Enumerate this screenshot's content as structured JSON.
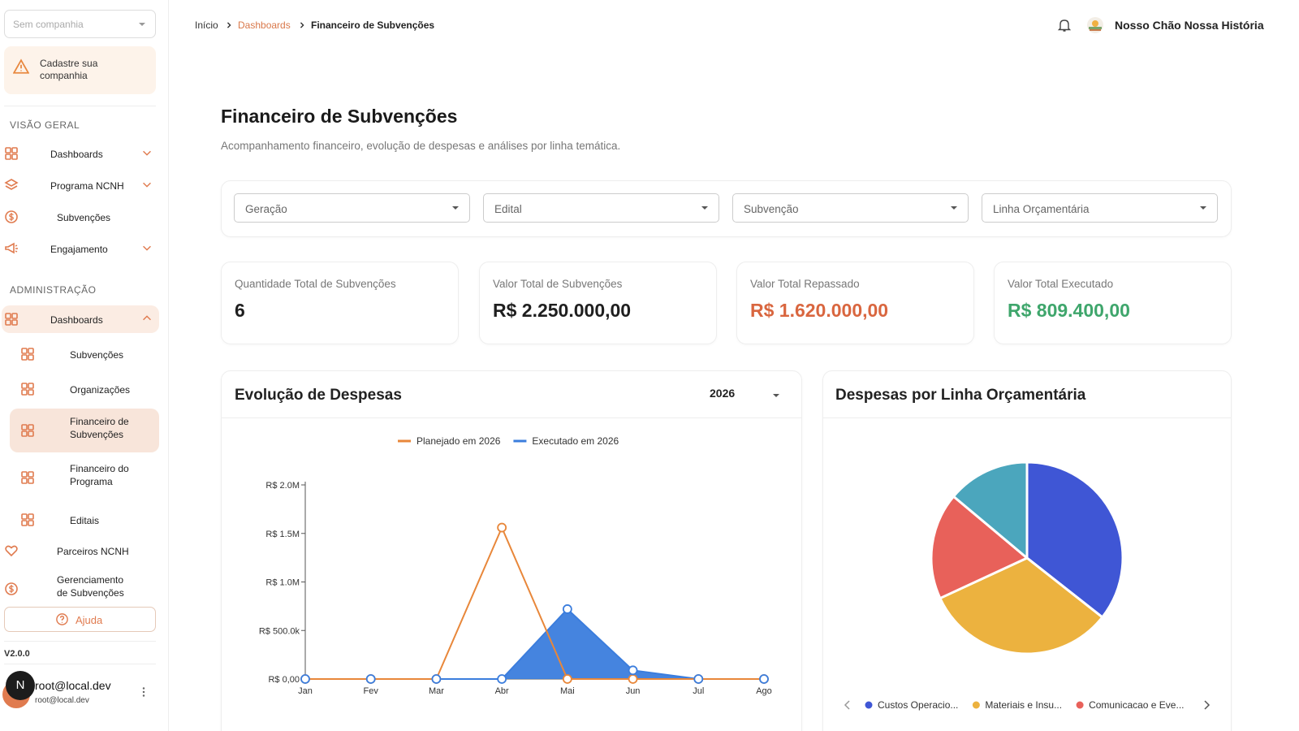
{
  "sidebar": {
    "company_select": "Sem companhia",
    "company_alert": "Cadastre sua companhia",
    "sections": [
      {
        "title": "VISÃO GERAL",
        "items": [
          "Dashboards",
          "Programa NCNH",
          "Subvenções",
          "Engajamento"
        ]
      },
      {
        "title": "ADMINISTRAÇÃO",
        "items": [
          "Dashboards",
          "Subvenções",
          "Organizações",
          "Financeiro de Subvenções",
          "Financeiro do Programa",
          "Editais",
          "Parceiros NCNH",
          "Gerenciamento de Subvenções"
        ]
      }
    ],
    "help": "Ajuda",
    "version": "V2.0.0",
    "user": {
      "avatar": "N",
      "name": "root@local.dev",
      "email": "root@local.dev"
    }
  },
  "breadcrumb": [
    "Início",
    "Dashboards",
    "Financeiro de Subvenções"
  ],
  "header": {
    "organization": "Nosso Chão Nossa História"
  },
  "page": {
    "title": "Financeiro de Subvenções",
    "subtitle": "Acompanhamento financeiro, evolução de despesas e análises por linha temática."
  },
  "filters": [
    "Geração",
    "Edital",
    "Subvenção",
    "Linha Orçamentária"
  ],
  "kpis": [
    {
      "label": "Quantidade Total de Subvenções",
      "value": "6",
      "color": "#1f1f1f"
    },
    {
      "label": "Valor Total de Subvenções",
      "value": "R$ 2.250.000,00",
      "color": "#1f1f1f"
    },
    {
      "label": "Valor Total Repassado",
      "value": "R$ 1.620.000,00",
      "color": "#d9663f"
    },
    {
      "label": "Valor Total Executado",
      "value": "R$ 809.400,00",
      "color": "#3fa66c"
    }
  ],
  "chart_data": [
    {
      "type": "line",
      "title": "Evolução de Despesas",
      "period": "2026",
      "categories": [
        "Jan",
        "Fev",
        "Mar",
        "Abr",
        "Mai",
        "Jun",
        "Jul",
        "Ago"
      ],
      "series": [
        {
          "name": "Planejado em 2026",
          "color": "#e8873a",
          "area": false,
          "values": [
            0,
            0,
            0,
            1560000,
            0,
            0,
            0,
            0
          ]
        },
        {
          "name": "Executado em 2026",
          "color": "#3b7ddd",
          "area": true,
          "values": [
            0,
            0,
            0,
            0,
            720000,
            89400,
            0,
            0
          ]
        }
      ],
      "ylim": [
        0,
        2000000
      ],
      "yticks": [
        {
          "value": 0,
          "label": "R$ 0,00"
        },
        {
          "value": 500000,
          "label": "R$ 500.0k"
        },
        {
          "value": 1000000,
          "label": "R$ 1.0M"
        },
        {
          "value": 1500000,
          "label": "R$ 1.5M"
        },
        {
          "value": 2000000,
          "label": "R$ 2.0M"
        }
      ],
      "legend": "top"
    },
    {
      "type": "pie",
      "title": "Despesas por Linha Orçamentária",
      "categories": [
        "Custos Operacio...",
        "Materiais e Insu...",
        "Comunicacao e Eve...",
        null
      ],
      "colors": [
        "#3f56d5",
        "#ecb23f",
        "#e8615a",
        "#4ba6bd"
      ],
      "values": [
        35.6,
        32.5,
        18,
        13.9
      ],
      "legend": "bottom"
    }
  ]
}
